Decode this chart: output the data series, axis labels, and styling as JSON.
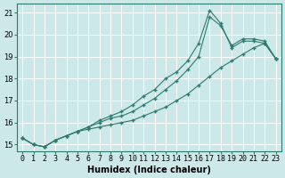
{
  "xlabel": "Humidex (Indice chaleur)",
  "background_color": "#cce8e8",
  "line_color": "#2d7a6e",
  "grid_color": "#ffffff",
  "series": {
    "line1_bottom": {
      "x": [
        0,
        1,
        2,
        3,
        4,
        5,
        6,
        7,
        8,
        9,
        10,
        11,
        12,
        13,
        14,
        15,
        16,
        17,
        18,
        19,
        20,
        21,
        22,
        23
      ],
      "y": [
        15.3,
        15.0,
        14.9,
        15.2,
        15.4,
        15.6,
        15.7,
        15.8,
        15.9,
        16.0,
        16.1,
        16.3,
        16.5,
        16.7,
        17.0,
        17.3,
        17.7,
        18.1,
        18.5,
        18.8,
        19.1,
        19.4,
        19.6,
        18.9
      ]
    },
    "line2_spike": {
      "x": [
        0,
        1,
        2,
        3,
        4,
        5,
        6,
        7,
        8,
        9,
        10,
        11,
        12,
        13,
        14,
        15,
        16,
        17,
        18,
        19,
        20,
        21,
        22,
        23
      ],
      "y": [
        15.3,
        15.0,
        14.9,
        15.2,
        15.4,
        15.6,
        15.8,
        16.1,
        16.3,
        16.5,
        16.8,
        17.2,
        17.5,
        18.0,
        18.3,
        18.8,
        19.6,
        21.1,
        20.5,
        19.4,
        19.7,
        19.7,
        19.6,
        18.9
      ]
    },
    "line3_upper": {
      "x": [
        0,
        1,
        2,
        3,
        4,
        5,
        6,
        7,
        8,
        9,
        10,
        11,
        12,
        13,
        14,
        15,
        16,
        17,
        18,
        19,
        20,
        21,
        22,
        23
      ],
      "y": [
        15.3,
        15.0,
        14.9,
        15.2,
        15.4,
        15.6,
        15.8,
        16.0,
        16.2,
        16.3,
        16.5,
        16.8,
        17.1,
        17.5,
        17.9,
        18.4,
        19.0,
        20.8,
        20.4,
        19.5,
        19.8,
        19.8,
        19.7,
        18.9
      ]
    }
  },
  "ylim": [
    14.7,
    21.4
  ],
  "xlim": [
    -0.5,
    23.5
  ],
  "yticks": [
    15,
    16,
    17,
    18,
    19,
    20,
    21
  ],
  "xticks": [
    0,
    1,
    2,
    3,
    4,
    5,
    6,
    7,
    8,
    9,
    10,
    11,
    12,
    13,
    14,
    15,
    16,
    17,
    18,
    19,
    20,
    21,
    22,
    23
  ],
  "tick_fontsize": 6,
  "xlabel_fontsize": 7
}
